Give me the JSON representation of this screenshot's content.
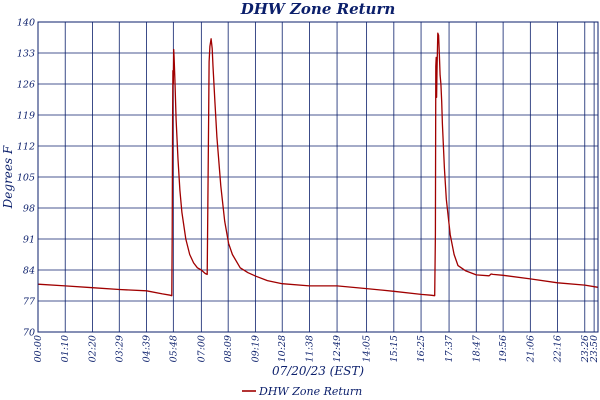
{
  "chart_data": {
    "type": "line",
    "title": "DHW Zone Return",
    "xlabel": "07/20/23 (EST)",
    "ylabel": "Degrees F",
    "ylim": [
      70,
      140
    ],
    "yticks": [
      70,
      77,
      84,
      91,
      98,
      105,
      112,
      119,
      126,
      133,
      140
    ],
    "xlim": [
      0,
      1440
    ],
    "xticks": [
      {
        "label": "00:00",
        "x": 0
      },
      {
        "label": "01:10",
        "x": 70
      },
      {
        "label": "02:20",
        "x": 140
      },
      {
        "label": "03:29",
        "x": 209
      },
      {
        "label": "04:39",
        "x": 279
      },
      {
        "label": "05:48",
        "x": 348
      },
      {
        "label": "07:00",
        "x": 420
      },
      {
        "label": "08:09",
        "x": 489
      },
      {
        "label": "09:19",
        "x": 559
      },
      {
        "label": "10:28",
        "x": 628
      },
      {
        "label": "11:38",
        "x": 698
      },
      {
        "label": "12:49",
        "x": 769
      },
      {
        "label": "14:05",
        "x": 845
      },
      {
        "label": "15:15",
        "x": 915
      },
      {
        "label": "16:25",
        "x": 985
      },
      {
        "label": "17:37",
        "x": 1057
      },
      {
        "label": "18:47",
        "x": 1127
      },
      {
        "label": "19:56",
        "x": 1196
      },
      {
        "label": "21:06",
        "x": 1266
      },
      {
        "label": "22:16",
        "x": 1336
      },
      {
        "label": "23:26",
        "x": 1406
      },
      {
        "label": "23:50",
        "x": 1430
      }
    ],
    "grid": true,
    "legend_position": "bottom",
    "series": [
      {
        "name": "DHW Zone Return",
        "color": "#a00000",
        "x": [
          0,
          70,
          140,
          209,
          279,
          320,
          340,
          344,
          345,
          346,
          347,
          348,
          349,
          350,
          352,
          355,
          360,
          365,
          370,
          380,
          390,
          400,
          410,
          420,
          430,
          435,
          437,
          439,
          440,
          442,
          445,
          448,
          450,
          455,
          460,
          470,
          480,
          490,
          500,
          520,
          540,
          560,
          590,
          628,
          698,
          769,
          845,
          915,
          985,
          1010,
          1020,
          1022,
          1023,
          1024,
          1025,
          1026,
          1028,
          1030,
          1032,
          1034,
          1036,
          1038,
          1040,
          1045,
          1050,
          1060,
          1070,
          1080,
          1100,
          1127,
          1160,
          1165,
          1170,
          1196,
          1266,
          1336,
          1406,
          1440
        ],
        "y": [
          80.8,
          80.4,
          80.0,
          79.6,
          79.3,
          78.6,
          78.3,
          78.2,
          92.0,
          118.0,
          129.0,
          126.0,
          133.8,
          132.0,
          127.0,
          118.0,
          109.0,
          102.0,
          97.0,
          91.0,
          87.5,
          85.6,
          84.5,
          84.0,
          83.2,
          83.0,
          100.0,
          120.0,
          131.0,
          134.5,
          136.2,
          134.0,
          130.0,
          122.0,
          114.0,
          103.0,
          95.0,
          90.0,
          87.5,
          84.5,
          83.4,
          82.6,
          81.6,
          80.9,
          80.4,
          80.4,
          79.8,
          79.2,
          78.5,
          78.3,
          78.2,
          92.0,
          130.0,
          132.0,
          123.0,
          129.0,
          137.5,
          137.0,
          133.0,
          128.0,
          126.0,
          122.0,
          117.0,
          107.0,
          100.0,
          92.0,
          87.5,
          85.0,
          83.8,
          82.9,
          82.7,
          83.1,
          83.0,
          82.8,
          82.0,
          81.1,
          80.6,
          80.1
        ]
      }
    ]
  }
}
